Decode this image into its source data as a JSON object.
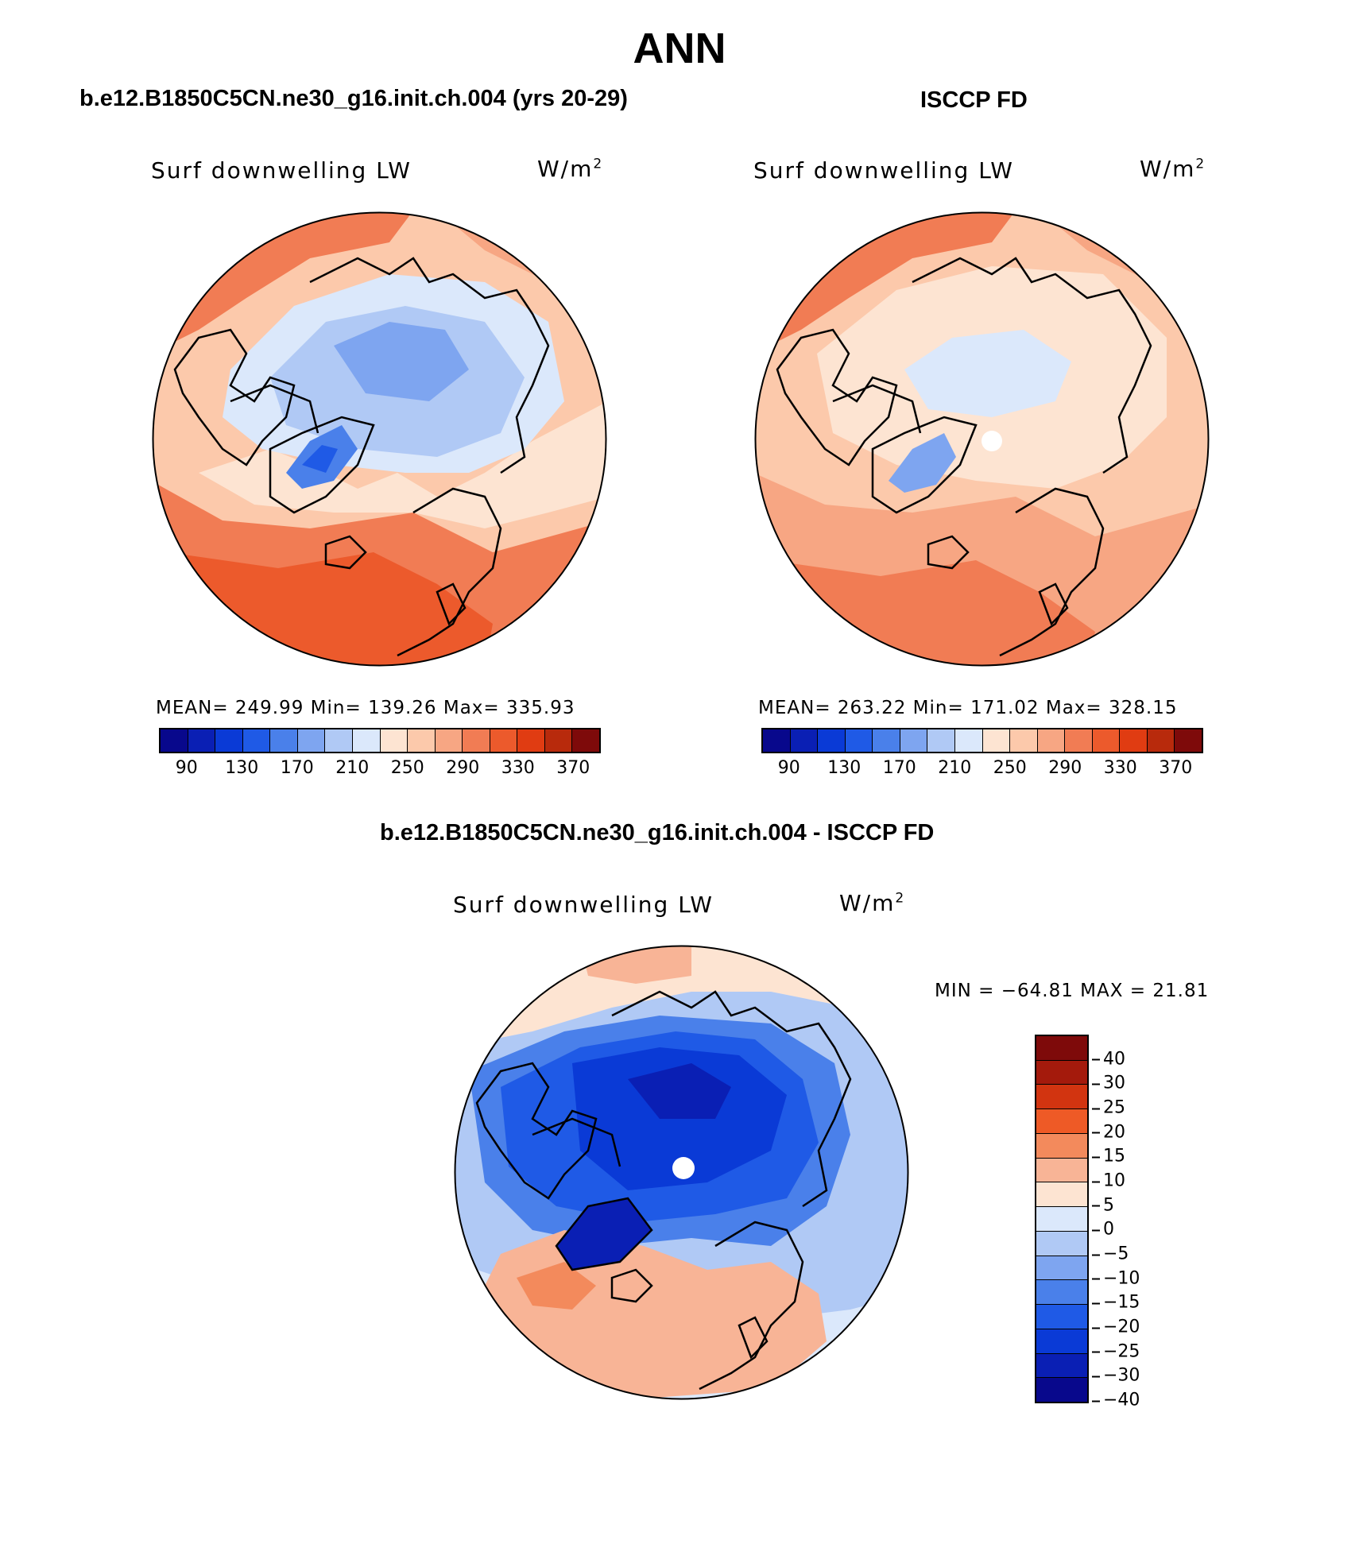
{
  "title": "ANN",
  "panels": [
    {
      "id": "model",
      "header": "b.e12.B1850C5CN.ne30_g16.init.ch.004 (yrs 20-29)",
      "variable": "Surf downwelling LW",
      "units_base": "W/m",
      "units_exp": "2",
      "stats": "MEAN= 249.99   Min= 139.26   Max= 335.93"
    },
    {
      "id": "obs",
      "header": "ISCCP FD",
      "variable": "Surf downwelling LW",
      "units_base": "W/m",
      "units_exp": "2",
      "stats": "MEAN= 263.22   Min= 171.02   Max= 328.15"
    },
    {
      "id": "diff",
      "header": "b.e12.B1850C5CN.ne30_g16.init.ch.004 - ISCCP FD",
      "variable": "Surf downwelling LW",
      "units_base": "W/m",
      "units_exp": "2",
      "stats": "MIN = −64.81  MAX =   21.81"
    }
  ],
  "colorbar_abs": {
    "colors": [
      "#08088c",
      "#0a1fb4",
      "#0a3ad6",
      "#1f5ae6",
      "#4a80ea",
      "#7ea5f0",
      "#b0c9f5",
      "#dbe8fb",
      "#fde4d2",
      "#fcc9ab",
      "#f7a683",
      "#f17c54",
      "#ec5a2c",
      "#e03c12",
      "#b82a0c",
      "#7e0a0a"
    ],
    "ticks": [
      "90",
      "130",
      "170",
      "210",
      "250",
      "290",
      "330",
      "370"
    ]
  },
  "colorbar_diff": {
    "colors": [
      "#7e0a0a",
      "#a41a0c",
      "#d23410",
      "#ee5a26",
      "#f38a5c",
      "#f8b496",
      "#fde4d2",
      "#dbe8fb",
      "#b0c9f5",
      "#7ea5f0",
      "#4a80ea",
      "#1f5ae6",
      "#0a3ad6",
      "#0a1fb4",
      "#08088c"
    ],
    "ticks": [
      "40",
      "30",
      "25",
      "20",
      "15",
      "10",
      "5",
      "0",
      "−5",
      "−10",
      "−15",
      "−20",
      "−25",
      "−30",
      "−40"
    ]
  },
  "maps": {
    "model": {
      "cap": "#dce8fb",
      "polar_ring": "#bdd3f7",
      "greenland": "#3f74e6",
      "ocean_low": "#f05a28",
      "land_high": "#fcd9c2"
    },
    "obs": {
      "cap": "#fde8db",
      "polar_ring": "#d2e3fa",
      "greenland": "#7aa2f0",
      "ocean_low": "#ef6a3a",
      "land_high": "#fbbfa0"
    },
    "diff": {
      "cap": "#0a2fc8",
      "polar_ring": "#4a80ea",
      "greenland": "#0a3ad6",
      "ocean_low": "#f6a989",
      "land_high": "#e3edfc"
    }
  }
}
